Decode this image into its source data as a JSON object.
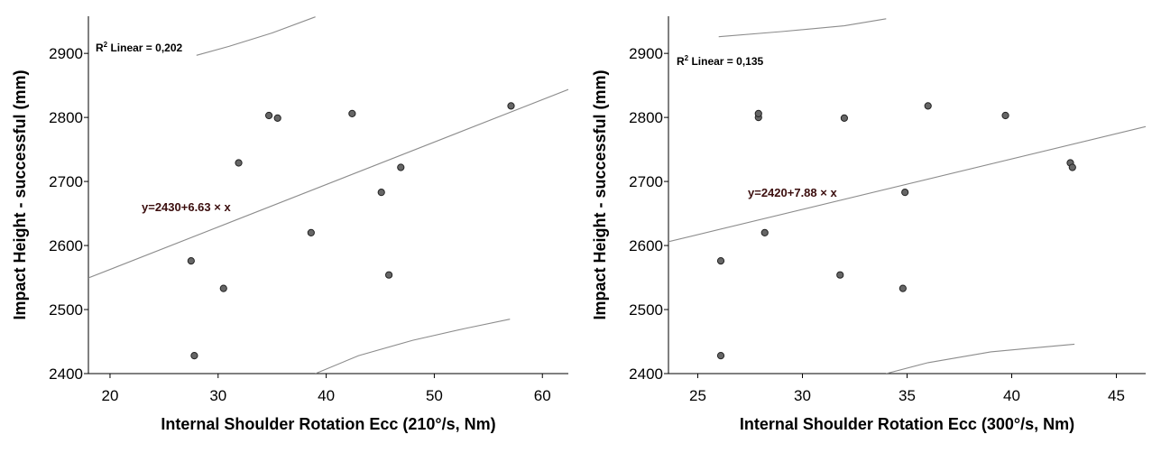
{
  "chart_data": [
    {
      "type": "scatter",
      "title": "",
      "xlabel": "Internal Shoulder Rotation Ecc (210°/s, Nm)",
      "ylabel": "Impact Height - successful (mm)",
      "xlim": [
        18,
        62.4
      ],
      "ylim": [
        2400,
        2958
      ],
      "xticks": [
        20,
        30,
        40,
        50,
        60
      ],
      "yticks": [
        2400,
        2500,
        2600,
        2700,
        2800,
        2900
      ],
      "r2_label": "Linear = 0,202",
      "r2_prefix": "R",
      "r2_sup": "2",
      "equation": "y=2430+6.63 × x",
      "fit": {
        "intercept": 2430,
        "slope": 6.63
      },
      "ci_upper": [
        [
          28,
          2897
        ],
        [
          31,
          2911
        ],
        [
          35,
          2932
        ],
        [
          39,
          2957
        ]
      ],
      "ci_lower": [
        [
          39,
          2400
        ],
        [
          43,
          2428
        ],
        [
          48,
          2452
        ],
        [
          53,
          2471
        ],
        [
          57,
          2485
        ]
      ],
      "points": [
        {
          "x": 27.5,
          "y": 2576
        },
        {
          "x": 27.8,
          "y": 2428
        },
        {
          "x": 30.5,
          "y": 2533
        },
        {
          "x": 31.9,
          "y": 2729
        },
        {
          "x": 34.7,
          "y": 2803
        },
        {
          "x": 35.5,
          "y": 2799
        },
        {
          "x": 38.6,
          "y": 2620
        },
        {
          "x": 42.4,
          "y": 2806
        },
        {
          "x": 45.1,
          "y": 2683
        },
        {
          "x": 45.8,
          "y": 2554
        },
        {
          "x": 46.9,
          "y": 2722
        },
        {
          "x": 57.1,
          "y": 2818
        }
      ]
    },
    {
      "type": "scatter",
      "title": "",
      "xlabel": "Internal Shoulder Rotation Ecc (300°/s, Nm)",
      "ylabel": "Impact Height - successful (mm)",
      "xlim": [
        23.6,
        46.4
      ],
      "ylim": [
        2400,
        2958
      ],
      "xticks": [
        25,
        30,
        35,
        40,
        45
      ],
      "yticks": [
        2400,
        2500,
        2600,
        2700,
        2800,
        2900
      ],
      "r2_label": "Linear = 0,135",
      "r2_prefix": "R",
      "r2_sup": "2",
      "equation": "y=2420+7.88 × x",
      "fit": {
        "intercept": 2420,
        "slope": 7.88
      },
      "ci_upper": [
        [
          26,
          2926
        ],
        [
          29,
          2934
        ],
        [
          32,
          2943
        ],
        [
          34,
          2954
        ]
      ],
      "ci_lower": [
        [
          34,
          2400
        ],
        [
          36,
          2417
        ],
        [
          39,
          2434
        ],
        [
          43,
          2446
        ]
      ],
      "points": [
        {
          "x": 26.1,
          "y": 2576
        },
        {
          "x": 26.1,
          "y": 2428
        },
        {
          "x": 27.9,
          "y": 2800
        },
        {
          "x": 27.9,
          "y": 2806
        },
        {
          "x": 28.2,
          "y": 2620
        },
        {
          "x": 31.8,
          "y": 2554
        },
        {
          "x": 32.0,
          "y": 2799
        },
        {
          "x": 34.8,
          "y": 2533
        },
        {
          "x": 34.9,
          "y": 2683
        },
        {
          "x": 36.0,
          "y": 2818
        },
        {
          "x": 39.7,
          "y": 2803
        },
        {
          "x": 42.8,
          "y": 2729
        },
        {
          "x": 42.9,
          "y": 2722
        }
      ]
    }
  ]
}
